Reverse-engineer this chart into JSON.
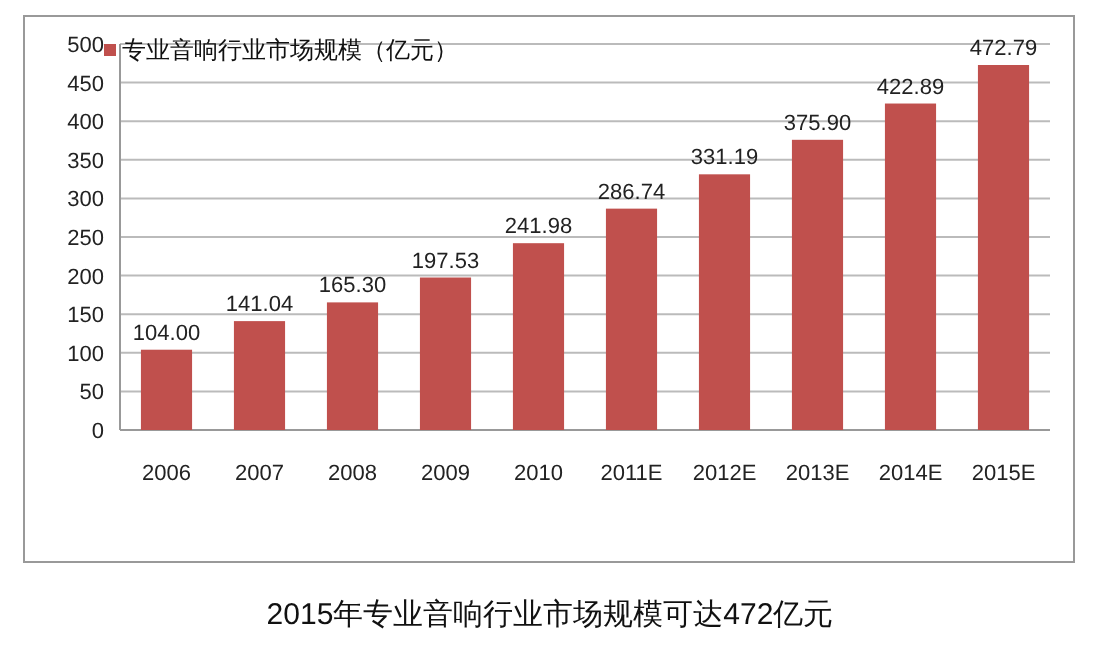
{
  "chart_data": {
    "type": "bar",
    "categories": [
      "2006",
      "2007",
      "2008",
      "2009",
      "2010",
      "2011E",
      "2012E",
      "2013E",
      "2014E",
      "2015E"
    ],
    "series": [
      {
        "name": "专业音响行业市场规模（亿元）",
        "color": "#c0504d",
        "values": [
          104.0,
          141.04,
          165.3,
          197.53,
          241.98,
          286.74,
          331.19,
          375.9,
          422.89,
          472.79
        ],
        "value_labels": [
          "104.00",
          "141.04",
          "165.30",
          "197.53",
          "241.98",
          "286.74",
          "331.19",
          "375.90",
          "422.89",
          "472.79"
        ]
      }
    ],
    "ylim": [
      0,
      500
    ],
    "yticks": [
      0,
      50,
      100,
      150,
      200,
      250,
      300,
      350,
      400,
      450,
      500
    ],
    "grid": "y",
    "legend": "top left",
    "annotations": [
      "2015年专业音响行业市场规模可达472亿元"
    ]
  }
}
